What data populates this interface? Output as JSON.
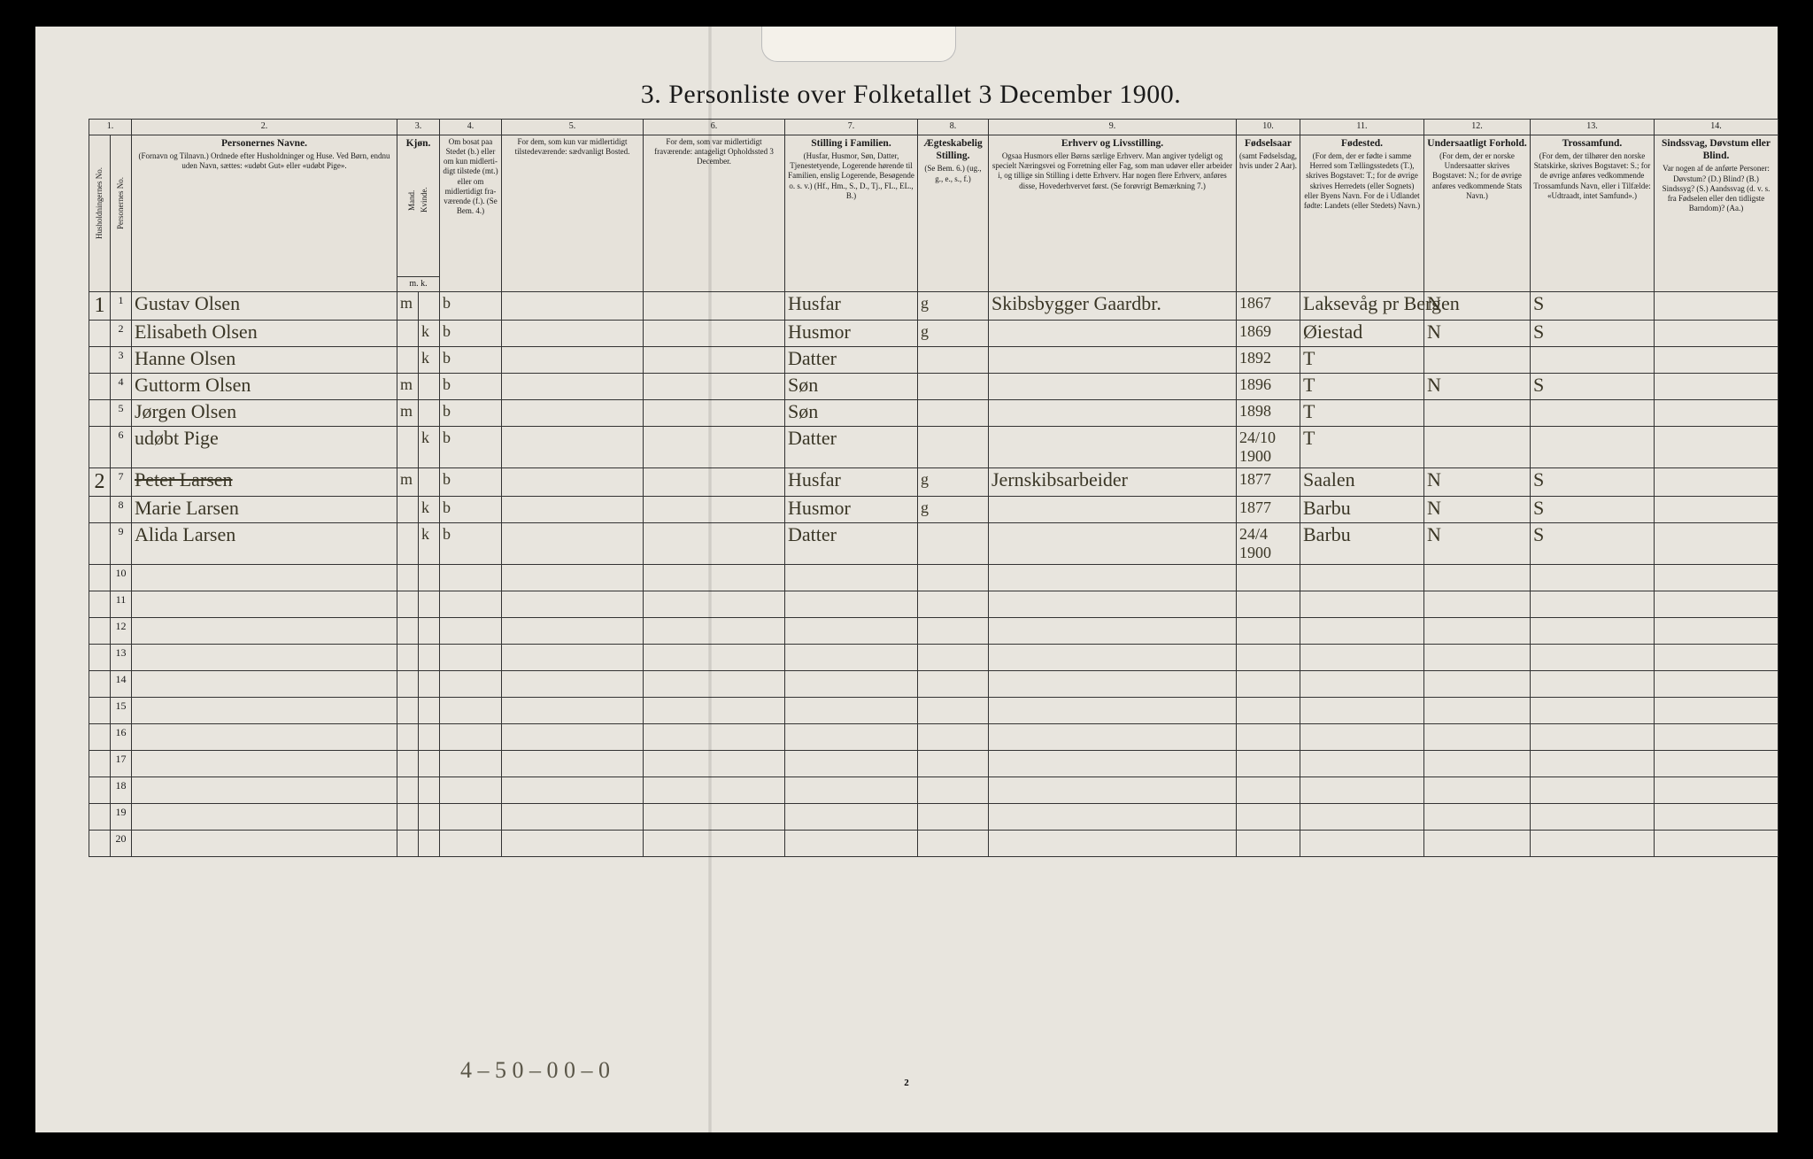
{
  "title": "3. Personliste over Folketallet 3 December 1900.",
  "page_number": "2",
  "footer_tally": "4 – 5   0 – 0     0 – 0",
  "columns": {
    "c1": {
      "num": "1.",
      "label": "Husholdningernes No."
    },
    "c1b": {
      "label": "Personernes No."
    },
    "c2": {
      "num": "2.",
      "title": "Personernes Navne.",
      "body": "(Fornavn og Tilnavn.)\nOrdnede efter Husholdninger og Huse.\nVed Børn, endnu uden Navn, sættes: «udøbt Gut» eller «udøbt Pige»."
    },
    "c3": {
      "num": "3.",
      "title": "Kjøn.",
      "m": "Mand.",
      "k": "Kvinde.",
      "mk": "m.  k."
    },
    "c4": {
      "num": "4.",
      "body": "Om bosat paa Stedet (b.) eller om kun midlerti­digt tilstede (mt.) eller om midlerti­digt fra­værende (f.).\n(Se Bem. 4.)"
    },
    "c5": {
      "num": "5.",
      "body": "For dem, som kun var midlertidigt tilstede­værende:\nsædvanligt Bosted."
    },
    "c6": {
      "num": "6.",
      "body": "For dem, som var midlertidigt fraværende:\nantageligt Opholdssted 3 December."
    },
    "c7": {
      "num": "7.",
      "title": "Stilling i Familien.",
      "body": "(Husfar, Husmor, Søn, Datter, Tjenestetyende, Lo­gerende hørende til Familien, enslig Logerende, Besøgende o. s. v.)\n(Hf., Hm., S., D., Tj., FL., EL., B.)"
    },
    "c8": {
      "num": "8.",
      "title": "Ægteska­belig Stilling.",
      "body": "(Se Bem. 6.)\n(ug., g., e., s., f.)"
    },
    "c9": {
      "num": "9.",
      "title": "Erhverv og Livsstilling.",
      "body": "Ogsaa Husmors eller Børns særlige Erhverv.\nMan angiver tydeligt og specielt Næringsvei og For­retning eller Fag, som man udøver eller arbeider i, og tillige sin Stilling i dette Erhverv.\nHar nogen flere Erhverv, anføres disse, Hoved­erhvervet først.\n(Se forøvrigt Bemærkning 7.)"
    },
    "c10": {
      "num": "10.",
      "title": "Fødsels­aar",
      "body": "(samt Fødsels­dag, hvis under 2 Aar)."
    },
    "c11": {
      "num": "11.",
      "title": "Fødested.",
      "body": "(For dem, der er fødte i samme Herred som Tællingsstedets (T.), skrives Bogstavet: T.; for de øvrige skrives Herredets (eller Sognets) eller Byens Navn.\nFor de i Udlandet fødte: Landets (eller Stedets) Navn.)"
    },
    "c12": {
      "num": "12.",
      "title": "Undersaatligt Forhold.",
      "body": "(For dem, der er norske Undersaatter skrives Bogstavet: N.; for de øvrige anføres vedkom­mende Stats Navn.)"
    },
    "c13": {
      "num": "13.",
      "title": "Trossamfund.",
      "body": "(For dem, der tilhører den norske Statskirke, skrives Bogstavet: S.; for de øvrige anføres vedkommende Trossam­funds Navn, eller i Til­fælde: «Udtraadt, intet Samfund».)"
    },
    "c14": {
      "num": "14.",
      "title": "Sindssvag, Døvstum eller Blind.",
      "body": "Var nogen af de anførte Personer:\nDøvstum?  (D.)\nBlind?  (B.)\nSindssyg?  (S.)\nAandssvag (d. v. s. fra Fødselen eller den tid­ligste Barndom)? (Aa.)"
    }
  },
  "widths": {
    "c1": 24,
    "c1b": 24,
    "c2": 300,
    "c3m": 24,
    "c3k": 24,
    "c4": 70,
    "c5": 160,
    "c6": 160,
    "c7": 150,
    "c8": 80,
    "c9": 280,
    "c10": 72,
    "c11": 140,
    "c12": 120,
    "c13": 140,
    "c14": 140
  },
  "rows": [
    {
      "hh": "1",
      "no": "1",
      "name": "Gustav Olsen",
      "sex_m": "m",
      "sex_k": "",
      "res": "b",
      "fam": "Husfar",
      "mar": "g",
      "occ": "Skibsbygger  Gaardbr.",
      "year": "1867",
      "bplace": "Laksevåg pr Bergen",
      "nat": "N",
      "rel": "S",
      "c14": ""
    },
    {
      "hh": "",
      "no": "2",
      "name": "Elisabeth Olsen",
      "sex_m": "",
      "sex_k": "k",
      "res": "b",
      "fam": "Husmor",
      "mar": "g",
      "occ": "",
      "year": "1869",
      "bplace": "Øiestad",
      "nat": "N",
      "rel": "S",
      "c14": ""
    },
    {
      "hh": "",
      "no": "3",
      "name": "Hanne Olsen",
      "sex_m": "",
      "sex_k": "k",
      "res": "b",
      "fam": "Datter",
      "mar": "",
      "occ": "",
      "year": "1892",
      "bplace": "T",
      "nat": "",
      "rel": "",
      "c14": ""
    },
    {
      "hh": "",
      "no": "4",
      "name": "Guttorm Olsen",
      "sex_m": "m",
      "sex_k": "",
      "res": "b",
      "fam": "Søn",
      "mar": "",
      "occ": "",
      "year": "1896",
      "bplace": "T",
      "nat": "N",
      "rel": "S",
      "c14": ""
    },
    {
      "hh": "",
      "no": "5",
      "name": "Jørgen Olsen",
      "sex_m": "m",
      "sex_k": "",
      "res": "b",
      "fam": "Søn",
      "mar": "",
      "occ": "",
      "year": "1898",
      "bplace": "T",
      "nat": "",
      "rel": "",
      "c14": ""
    },
    {
      "hh": "",
      "no": "6",
      "name": "udøbt Pige",
      "sex_m": "",
      "sex_k": "k",
      "res": "b",
      "fam": "Datter",
      "mar": "",
      "occ": "",
      "year": "24/10 1900",
      "bplace": "T",
      "nat": "",
      "rel": "",
      "c14": ""
    },
    {
      "hh": "2",
      "no": "7",
      "name": "Peter Larsen",
      "sex_m": "m",
      "sex_k": "",
      "res": "b",
      "fam": "Husfar",
      "mar": "g",
      "occ": "Jernskibsarbeider",
      "year": "1877",
      "bplace": "Saalen",
      "nat": "N",
      "rel": "S",
      "c14": "",
      "strike": true
    },
    {
      "hh": "",
      "no": "8",
      "name": "Marie Larsen",
      "sex_m": "",
      "sex_k": "k",
      "res": "b",
      "fam": "Husmor",
      "mar": "g",
      "occ": "",
      "year": "1877",
      "bplace": "Barbu",
      "nat": "N",
      "rel": "S",
      "c14": ""
    },
    {
      "hh": "",
      "no": "9",
      "name": "Alida Larsen",
      "sex_m": "",
      "sex_k": "k",
      "res": "b",
      "fam": "Datter",
      "mar": "",
      "occ": "",
      "year": "24/4 1900",
      "bplace": "Barbu",
      "nat": "N",
      "rel": "S",
      "c14": ""
    }
  ],
  "blank_rows": [
    "10",
    "11",
    "12",
    "13",
    "14",
    "15",
    "16",
    "17",
    "18",
    "19",
    "20"
  ]
}
